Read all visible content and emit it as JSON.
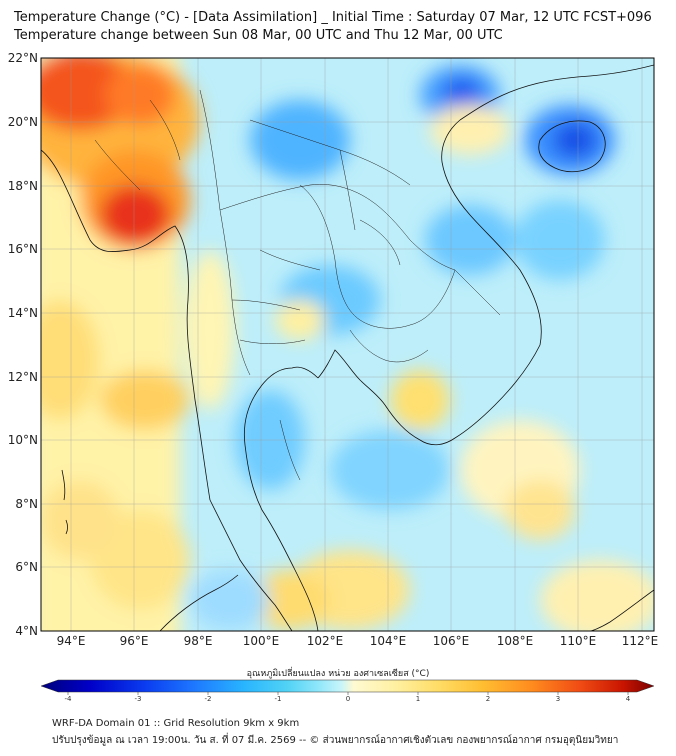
{
  "header": {
    "title_line1": "Temperature Change (°C) - [Data Assimilation] _ Initial Time : Saturday 07 Mar, 12 UTC FCST+096",
    "title_line2": "Temperature change between Sun 08 Mar, 00 UTC and Thu 12 Mar, 00 UTC"
  },
  "map": {
    "lat_labels": [
      "22°N",
      "20°N",
      "18°N",
      "16°N",
      "14°N",
      "12°N",
      "10°N",
      "8°N",
      "6°N",
      "4°N"
    ],
    "lon_labels": [
      "94°E",
      "96°E",
      "98°E",
      "100°E",
      "102°E",
      "104°E",
      "106°E",
      "108°E",
      "110°E",
      "112°E"
    ]
  },
  "colorbar": {
    "label": "อุณหภูมิเปลี่ยนแปลง หน่วย องศาเซลเซียส (°C)",
    "tick_labels": [
      "-4",
      "-3",
      "-2",
      "-1",
      "0",
      "1",
      "2",
      "3",
      "4"
    ],
    "min": -4,
    "max": 4,
    "colors": [
      "#00007a",
      "#0000c8",
      "#0a3cf0",
      "#1e78ff",
      "#28b4ff",
      "#50d2f5",
      "#8ce6fa",
      "#c8f5fa",
      "#ffffff",
      "#fffad2",
      "#fff0a0",
      "#ffdc64",
      "#ffbe32",
      "#ff8c1e",
      "#f04b14",
      "#c81400",
      "#780000"
    ]
  },
  "footer": {
    "line1": "WRF-DA Domain 01 :: Grid Resolution 9km x 9km",
    "line2": "ปรับปรุงข้อมูล ณ เวลา 19:00น. วัน ส. ที่ 07 มี.ค. 2569 -- © ส่วนพยากรณ์อากาศเชิงตัวเลข กองพยากรณ์อากาศ กรมอุตุนิยมวิทยา"
  }
}
